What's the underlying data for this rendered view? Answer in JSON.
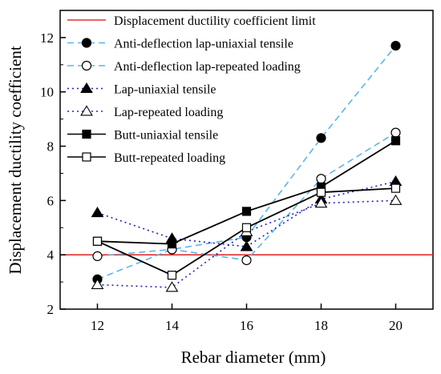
{
  "chart_data": {
    "type": "line",
    "xlabel": "Rebar diameter (mm)",
    "ylabel": "Displacement ductility coefficient",
    "x": [
      12,
      14,
      16,
      18,
      20
    ],
    "xlim": [
      11,
      21
    ],
    "ylim": [
      2,
      13
    ],
    "xticks": [
      12,
      14,
      16,
      18,
      20
    ],
    "yticks": [
      2,
      4,
      6,
      8,
      10,
      12
    ],
    "grid": false,
    "legend_position": "top-left",
    "limit_line": {
      "name": "Displacement ductility coefficient limit",
      "y": 4,
      "color": "#e03030"
    },
    "series": [
      {
        "name": "Anti-deflection lap-uniaxial tensile",
        "values": [
          3.1,
          4.2,
          4.65,
          8.3,
          11.7
        ],
        "color": "#5bb5e8",
        "dash": "dashed",
        "marker": "circle",
        "filled": true
      },
      {
        "name": "Anti-deflection lap-repeated loading",
        "values": [
          3.95,
          4.2,
          3.8,
          6.8,
          8.5
        ],
        "color": "#5bb5e8",
        "dash": "dashed",
        "marker": "circle",
        "filled": false
      },
      {
        "name": "Lap-uniaxial tensile",
        "values": [
          5.55,
          4.6,
          4.3,
          6.05,
          6.7
        ],
        "color": "#2020c0",
        "dash": "dotted",
        "marker": "triangle",
        "filled": true
      },
      {
        "name": "Lap-repeated loading",
        "values": [
          2.9,
          2.8,
          4.85,
          5.9,
          6.0
        ],
        "color": "#2020c0",
        "dash": "dotted",
        "marker": "triangle",
        "filled": false
      },
      {
        "name": "Butt-uniaxial tensile",
        "values": [
          4.5,
          4.4,
          5.6,
          6.5,
          8.2
        ],
        "color": "#000000",
        "dash": "solid",
        "marker": "square",
        "filled": true
      },
      {
        "name": "Butt-repeated loading",
        "values": [
          4.5,
          3.25,
          5.0,
          6.3,
          6.45
        ],
        "color": "#000000",
        "dash": "solid",
        "marker": "square",
        "filled": false
      }
    ]
  }
}
